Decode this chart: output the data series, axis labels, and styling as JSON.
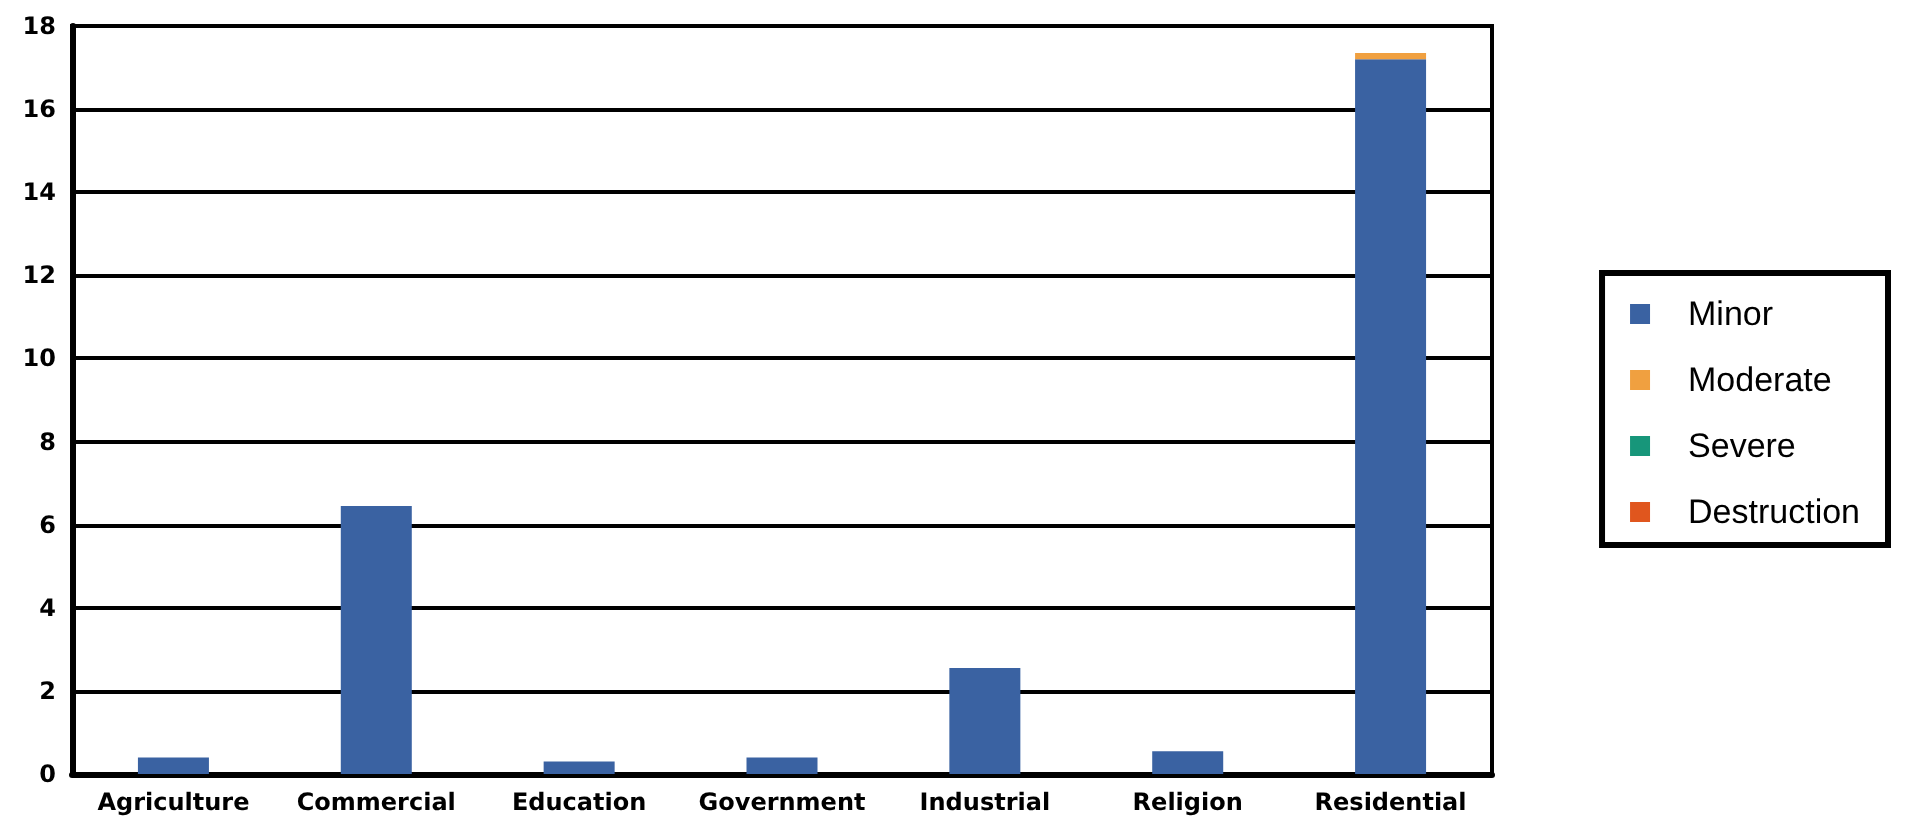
{
  "chart_data": {
    "type": "bar",
    "stacked": true,
    "categories": [
      "Agriculture",
      "Commercial",
      "Education",
      "Government",
      "Industrial",
      "Religion",
      "Residential"
    ],
    "series": [
      {
        "name": "Minor",
        "color": "#3a62a2",
        "values": [
          0.4,
          6.45,
          0.3,
          0.4,
          2.55,
          0.55,
          17.2
        ]
      },
      {
        "name": "Moderate",
        "color": "#f0a040",
        "values": [
          0,
          0,
          0,
          0,
          0,
          0,
          0.15
        ]
      },
      {
        "name": "Severe",
        "color": "#17967a",
        "values": [
          0,
          0,
          0,
          0,
          0,
          0,
          0
        ]
      },
      {
        "name": "Destruction",
        "color": "#e0561e",
        "values": [
          0,
          0,
          0,
          0,
          0,
          0,
          0
        ]
      }
    ],
    "ylim": [
      0,
      18
    ],
    "yticks": [
      0,
      2,
      4,
      6,
      8,
      10,
      12,
      14,
      16,
      18
    ],
    "grid": "y",
    "legend": "right"
  }
}
